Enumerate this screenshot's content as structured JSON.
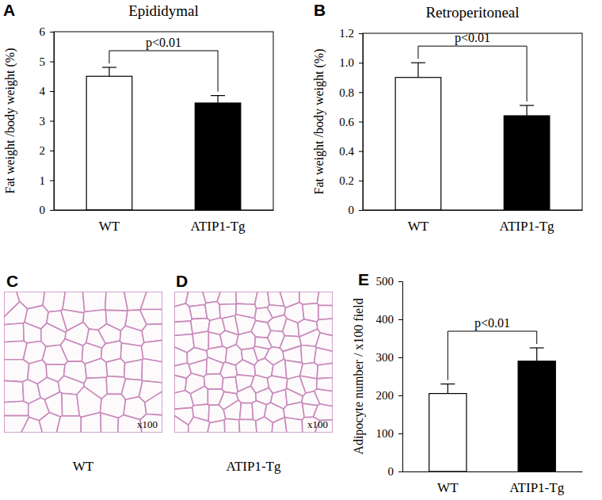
{
  "chart_data": [
    {
      "type": "bar",
      "panel": "A",
      "title": "Epididymal",
      "y_label": "Fat weight /body weight (%)",
      "categories": [
        "WT",
        "ATIP1-Tg"
      ],
      "values": [
        4.5,
        3.6
      ],
      "errors": [
        0.3,
        0.25
      ],
      "colors": [
        "#ffffff",
        "#000000"
      ],
      "ylim": [
        0,
        6
      ],
      "yticks": [
        0,
        1,
        2,
        3,
        4,
        5,
        6
      ],
      "annotations": [
        {
          "text": "p<0.01",
          "between": [
            0,
            1
          ]
        }
      ]
    },
    {
      "type": "bar",
      "panel": "B",
      "title": "Retroperitoneal",
      "y_label": "Fat weight /body weight (%)",
      "categories": [
        "WT",
        "ATIP1-Tg"
      ],
      "values": [
        0.9,
        0.64
      ],
      "errors": [
        0.1,
        0.07
      ],
      "colors": [
        "#ffffff",
        "#000000"
      ],
      "ylim": [
        0,
        1.2
      ],
      "yticks": [
        0,
        0.2,
        0.4,
        0.6,
        0.8,
        {
          "value": 1,
          "label": "1.0"
        },
        1.2
      ],
      "annotations": [
        {
          "text": "p<0.01",
          "between": [
            0,
            1
          ]
        }
      ]
    },
    {
      "type": "bar",
      "panel": "E",
      "y_label": "Adipocyte number / x100 field",
      "categories": [
        "WT",
        "ATIP1-Tg"
      ],
      "values": [
        205,
        290
      ],
      "errors": [
        25,
        35
      ],
      "colors": [
        "#ffffff",
        "#000000"
      ],
      "ylim": [
        0,
        500
      ],
      "yticks": [
        0,
        100,
        200,
        300,
        400,
        500
      ],
      "annotations": [
        {
          "text": "p<0.01",
          "between": [
            0,
            1
          ]
        }
      ]
    }
  ],
  "images": [
    {
      "panel": "C",
      "caption": "WT",
      "magnification": "x100"
    },
    {
      "panel": "D",
      "caption": "ATIP1-Tg",
      "magnification": "x100"
    }
  ]
}
